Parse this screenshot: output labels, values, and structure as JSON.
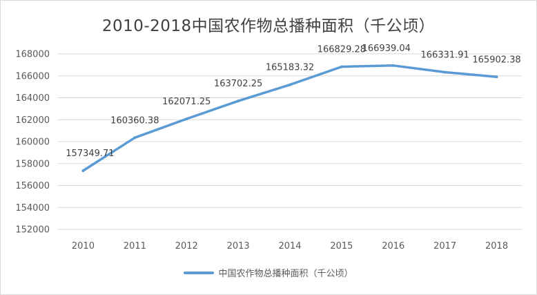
{
  "chart_data": {
    "type": "line",
    "title": "2010-2018中国农作物总播种面积（千公顷）",
    "xlabel": "",
    "ylabel": "",
    "categories": [
      "2010",
      "2011",
      "2012",
      "2013",
      "2014",
      "2015",
      "2016",
      "2017",
      "2018"
    ],
    "series": [
      {
        "name": "中国农作物总播种面积（千公顷）",
        "values": [
          157349.71,
          160360.38,
          162071.25,
          163702.25,
          165183.32,
          166829.28,
          166939.04,
          166331.91,
          165902.38
        ],
        "labels": [
          "157349.71",
          "160360.38",
          "162071.25",
          "163702.25",
          "165183.32",
          "166829.28",
          "166939.04",
          "166331.91",
          "165902.38"
        ],
        "color": "#5b9bd5"
      }
    ],
    "ylim": [
      152000,
      168000
    ],
    "yticks": [
      152000,
      154000,
      156000,
      158000,
      160000,
      162000,
      164000,
      166000,
      168000
    ],
    "grid": true,
    "legend": "bottom"
  }
}
